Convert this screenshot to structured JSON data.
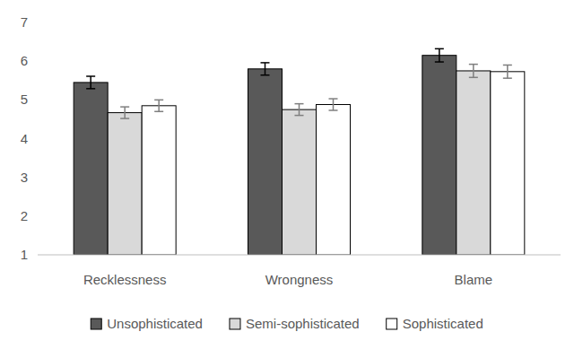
{
  "chart_data": {
    "type": "bar",
    "categories": [
      "Recklessness",
      "Wrongness",
      "Blame"
    ],
    "series": [
      {
        "name": "Unsophisticated",
        "color": "#595959",
        "values": [
          5.45,
          5.8,
          6.15
        ],
        "errors": [
          0.16,
          0.16,
          0.17
        ]
      },
      {
        "name": "Semi-sophisticated",
        "color": "#d9d9d9",
        "values": [
          4.67,
          4.75,
          5.75
        ],
        "errors": [
          0.15,
          0.15,
          0.17
        ]
      },
      {
        "name": "Sophisticated",
        "color": "#ffffff",
        "values": [
          4.85,
          4.88,
          5.73
        ],
        "errors": [
          0.15,
          0.15,
          0.17
        ]
      }
    ],
    "ylim": [
      1,
      7
    ],
    "yticks": [
      1,
      2,
      3,
      4,
      5,
      6,
      7
    ],
    "grid": false,
    "legend": "bottom"
  }
}
